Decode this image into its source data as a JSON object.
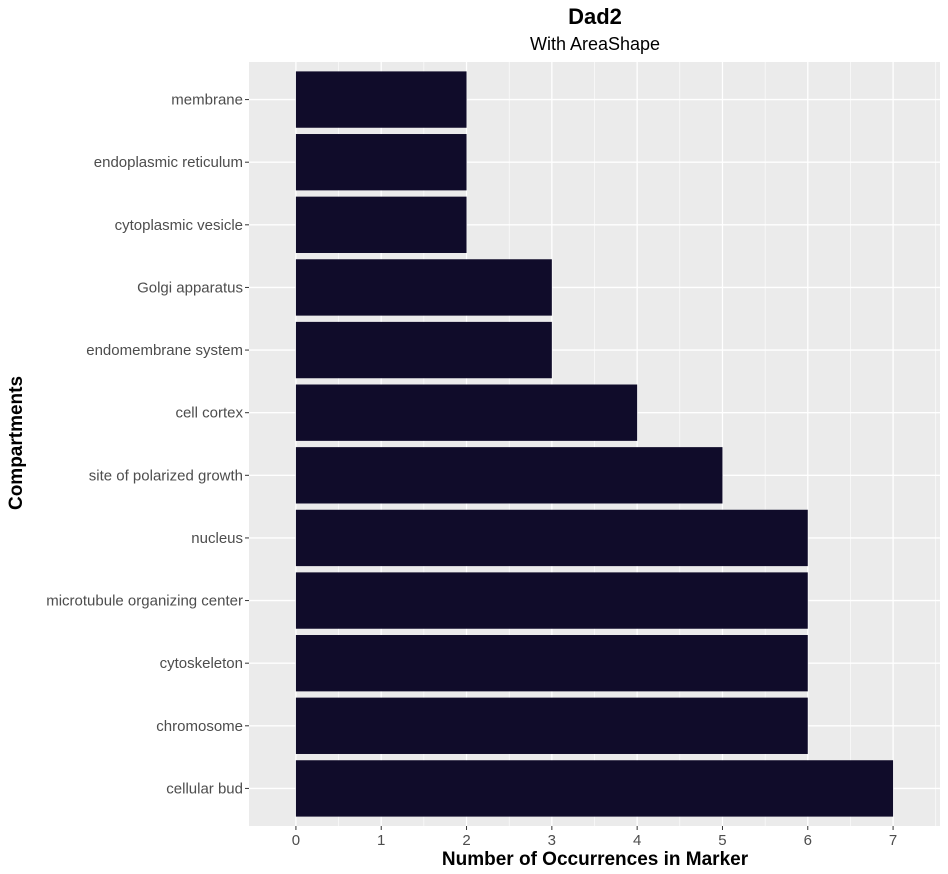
{
  "chart_data": {
    "type": "bar",
    "orientation": "horizontal",
    "title": "Dad2",
    "subtitle": "With AreaShape",
    "xlabel": "Number of Occurrences in Marker",
    "ylabel": "Compartments",
    "categories": [
      "membrane",
      "endoplasmic reticulum",
      "cytoplasmic vesicle",
      "Golgi apparatus",
      "endomembrane system",
      "cell cortex",
      "site of polarized growth",
      "nucleus",
      "microtubule organizing center",
      "cytoskeleton",
      "chromosome",
      "cellular bud"
    ],
    "values": [
      2,
      2,
      2,
      3,
      3,
      4,
      5,
      6,
      6,
      6,
      6,
      7
    ],
    "xlim": [
      -0.55,
      7.55
    ],
    "xticks": [
      0,
      1,
      2,
      3,
      4,
      5,
      6,
      7
    ],
    "grid": true,
    "legend": "none",
    "colors": {
      "bar": "#100c2a",
      "panel": "#ebebeb",
      "grid": "#ffffff",
      "tick_text": "#4d4d4d"
    }
  }
}
